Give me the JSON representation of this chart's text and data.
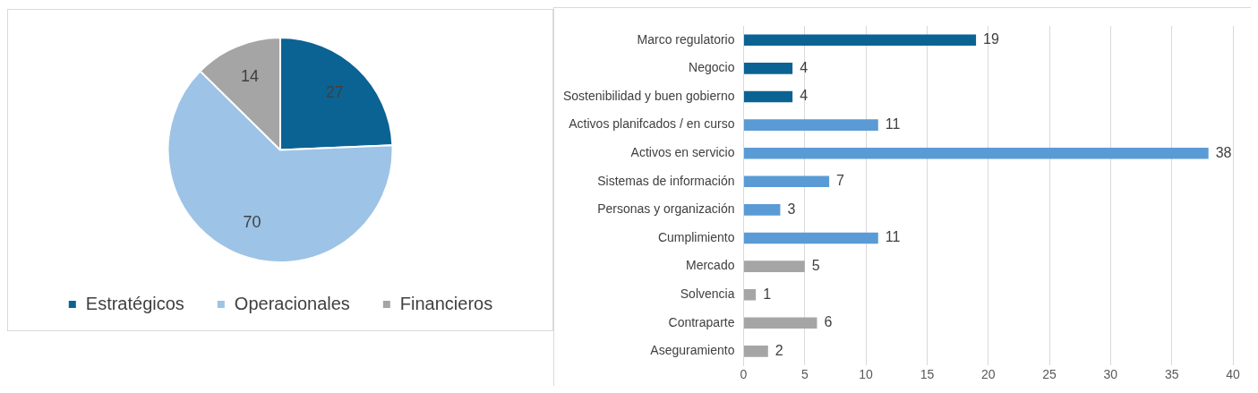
{
  "chart_data": [
    {
      "type": "pie",
      "categories": [
        "Estratégicos",
        "Operacionales",
        "Financieros"
      ],
      "values": [
        27,
        70,
        14
      ],
      "colors": [
        "#0b6394",
        "#9dc3e6",
        "#a5a5a5"
      ],
      "data_labels": true,
      "legend": "bottom"
    },
    {
      "type": "bar",
      "orientation": "horizontal",
      "categories": [
        "Marco regulatorio",
        "Negocio",
        "Sostenibilidad y buen gobierno",
        "Activos planifcados / en curso",
        "Activos en servicio",
        "Sistemas de información",
        "Personas y organización",
        "Cumplimiento",
        "Mercado",
        "Solvencia",
        "Contraparte",
        "Aseguramiento"
      ],
      "values": [
        19,
        4,
        4,
        11,
        38,
        7,
        3,
        11,
        5,
        1,
        6,
        2
      ],
      "colors": [
        "#0b6394",
        "#0b6394",
        "#0b6394",
        "#5b9bd5",
        "#5b9bd5",
        "#5b9bd5",
        "#5b9bd5",
        "#5b9bd5",
        "#a5a5a5",
        "#a5a5a5",
        "#a5a5a5",
        "#a5a5a5"
      ],
      "xlim": [
        0,
        40
      ],
      "xticks": [
        0,
        5,
        10,
        15,
        20,
        25,
        30,
        35,
        40
      ],
      "grid": "x",
      "data_labels": true,
      "legend": false
    }
  ]
}
